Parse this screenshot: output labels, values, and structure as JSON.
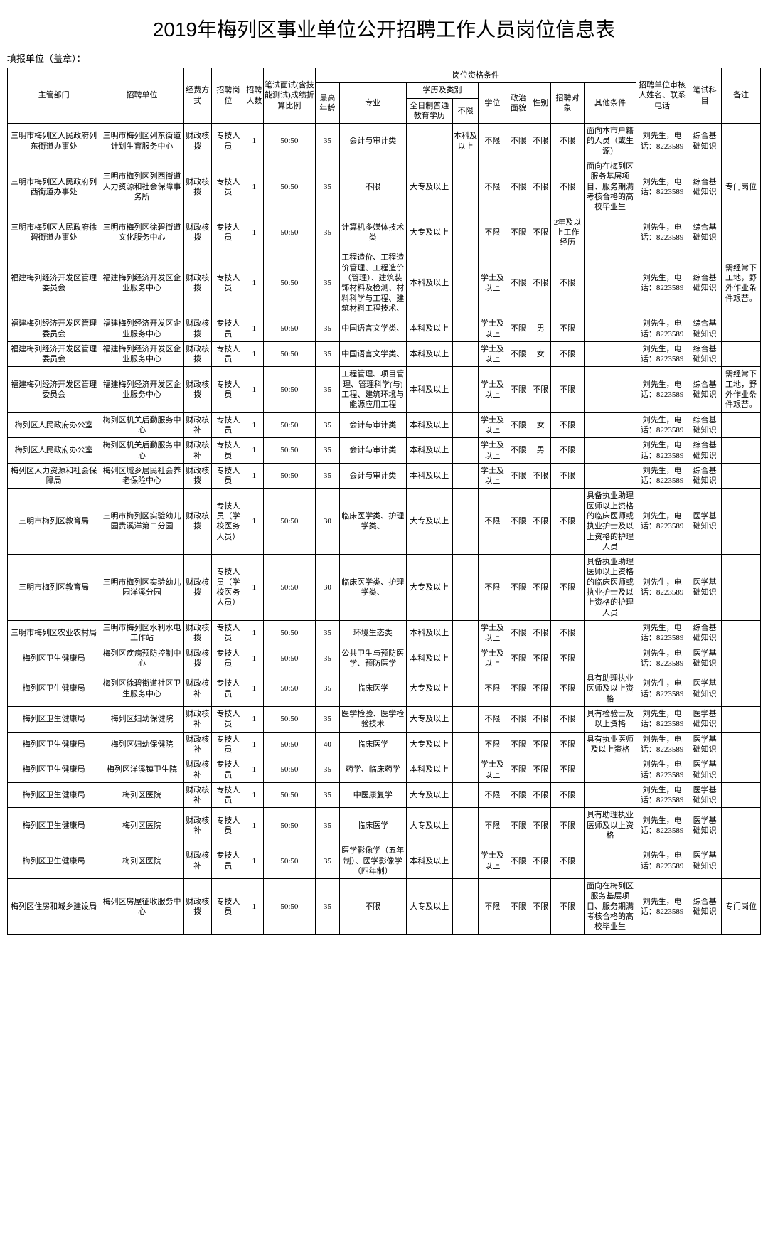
{
  "title": "2019年梅列区事业单位公开招聘工作人员岗位信息表",
  "subtitle": "填报单位（盖章）：",
  "headers": {
    "dept": "主管部门",
    "unit": "招聘单位",
    "fund": "经费方式",
    "post": "招聘岗位",
    "num": "招聘人数",
    "ratio": "笔试面试(含技能测试)成绩折算比例",
    "qualGroup": "岗位资格条件",
    "age": "最高年龄",
    "major": "专业",
    "eduGroup": "学历及类别",
    "edu": "全日制普通教育学历",
    "nolim": "不限",
    "degree": "学位",
    "pol": "政治面貌",
    "sex": "性别",
    "target": "招聘对象",
    "other": "其他条件",
    "contact": "招聘单位审核人姓名、联系电话",
    "exam": "笔试科目",
    "note": "备注"
  },
  "rows": [
    {
      "dept": "三明市梅列区人民政府列东街道办事处",
      "unit": "三明市梅列区列东街道计划生育服务中心",
      "fund": "财政核拨",
      "post": "专技人员",
      "num": "1",
      "ratio": "50:50",
      "age": "35",
      "major": "会计与审计类",
      "edu": "",
      "nolim": "本科及以上",
      "degree": "不限",
      "pol": "不限",
      "sex": "不限",
      "target": "不限",
      "other": "面向本市户籍的人员（或生源）",
      "contact": "刘先生，电话：8223589",
      "exam": "综合基础知识",
      "note": ""
    },
    {
      "dept": "三明市梅列区人民政府列西街道办事处",
      "unit": "三明市梅列区列西街道人力资源和社会保障事务所",
      "fund": "财政核拨",
      "post": "专技人员",
      "num": "1",
      "ratio": "50:50",
      "age": "35",
      "major": "不限",
      "edu": "大专及以上",
      "nolim": "",
      "degree": "不限",
      "pol": "不限",
      "sex": "不限",
      "target": "不限",
      "other": "面向在梅列区服务基层项目、服务期满考核合格的高校毕业生",
      "contact": "刘先生，电话：8223589",
      "exam": "综合基础知识",
      "note": "专门岗位"
    },
    {
      "dept": "三明市梅列区人民政府徐碧街道办事处",
      "unit": "三明市梅列区徐碧街道文化服务中心",
      "fund": "财政核拨",
      "post": "专技人员",
      "num": "1",
      "ratio": "50:50",
      "age": "35",
      "major": "计算机多媒体技术类",
      "edu": "大专及以上",
      "nolim": "",
      "degree": "不限",
      "pol": "不限",
      "sex": "不限",
      "target": "2年及以上工作经历",
      "other": "",
      "contact": "刘先生，电话：8223589",
      "exam": "综合基础知识",
      "note": ""
    },
    {
      "dept": "福建梅列经济开发区管理委员会",
      "unit": "福建梅列经济开发区企业服务中心",
      "fund": "财政核拨",
      "post": "专技人员",
      "num": "1",
      "ratio": "50:50",
      "age": "35",
      "major": "工程造价、工程造价管理、工程造价（管理）、建筑装饰材料及检测、材料科学与工程、建筑材料工程技术、",
      "edu": "本科及以上",
      "nolim": "",
      "degree": "学士及以上",
      "pol": "不限",
      "sex": "不限",
      "target": "不限",
      "other": "",
      "contact": "刘先生，电话：8223589",
      "exam": "综合基础知识",
      "note": "需经常下工地，野外作业条件艰苦。"
    },
    {
      "dept": "福建梅列经济开发区管理委员会",
      "unit": "福建梅列经济开发区企业服务中心",
      "fund": "财政核拨",
      "post": "专技人员",
      "num": "1",
      "ratio": "50:50",
      "age": "35",
      "major": "中国语言文学类、",
      "edu": "本科及以上",
      "nolim": "",
      "degree": "学士及以上",
      "pol": "不限",
      "sex": "男",
      "target": "不限",
      "other": "",
      "contact": "刘先生，电话：8223589",
      "exam": "综合基础知识",
      "note": ""
    },
    {
      "dept": "福建梅列经济开发区管理委员会",
      "unit": "福建梅列经济开发区企业服务中心",
      "fund": "财政核拨",
      "post": "专技人员",
      "num": "1",
      "ratio": "50:50",
      "age": "35",
      "major": "中国语言文学类、",
      "edu": "本科及以上",
      "nolim": "",
      "degree": "学士及以上",
      "pol": "不限",
      "sex": "女",
      "target": "不限",
      "other": "",
      "contact": "刘先生，电话：8223589",
      "exam": "综合基础知识",
      "note": ""
    },
    {
      "dept": "福建梅列经济开发区管理委员会",
      "unit": "福建梅列经济开发区企业服务中心",
      "fund": "财政核拨",
      "post": "专技人员",
      "num": "1",
      "ratio": "50:50",
      "age": "35",
      "major": "工程管理、项目管理、管理科学(与)工程、建筑环境与能源应用工程",
      "edu": "本科及以上",
      "nolim": "",
      "degree": "学士及以上",
      "pol": "不限",
      "sex": "不限",
      "target": "不限",
      "other": "",
      "contact": "刘先生，电话：8223589",
      "exam": "综合基础知识",
      "note": "需经常下工地，野外作业条件艰苦。"
    },
    {
      "dept": "梅列区人民政府办公室",
      "unit": "梅列区机关后勤服务中心",
      "fund": "财政核补",
      "post": "专技人员",
      "num": "1",
      "ratio": "50:50",
      "age": "35",
      "major": "会计与审计类",
      "edu": "本科及以上",
      "nolim": "",
      "degree": "学士及以上",
      "pol": "不限",
      "sex": "女",
      "target": "不限",
      "other": "",
      "contact": "刘先生，电话：8223589",
      "exam": "综合基础知识",
      "note": ""
    },
    {
      "dept": "梅列区人民政府办公室",
      "unit": "梅列区机关后勤服务中心",
      "fund": "财政核补",
      "post": "专技人员",
      "num": "1",
      "ratio": "50:50",
      "age": "35",
      "major": "会计与审计类",
      "edu": "本科及以上",
      "nolim": "",
      "degree": "学士及以上",
      "pol": "不限",
      "sex": "男",
      "target": "不限",
      "other": "",
      "contact": "刘先生，电话：8223589",
      "exam": "综合基础知识",
      "note": ""
    },
    {
      "dept": "梅列区人力资源和社会保障局",
      "unit": "梅列区城乡居民社会养老保险中心",
      "fund": "财政核拨",
      "post": "专技人员",
      "num": "1",
      "ratio": "50:50",
      "age": "35",
      "major": "会计与审计类",
      "edu": "本科及以上",
      "nolim": "",
      "degree": "学士及以上",
      "pol": "不限",
      "sex": "不限",
      "target": "不限",
      "other": "",
      "contact": "刘先生，电话：8223589",
      "exam": "综合基础知识",
      "note": ""
    },
    {
      "dept": "三明市梅列区教育局",
      "unit": "三明市梅列区实验幼儿园贵溪洋第二分园",
      "fund": "财政核拨",
      "post": "专技人员（学校医务人员）",
      "num": "1",
      "ratio": "50:50",
      "age": "30",
      "major": "临床医学类、护理学类、",
      "edu": "大专及以上",
      "nolim": "",
      "degree": "不限",
      "pol": "不限",
      "sex": "不限",
      "target": "不限",
      "other": "具备执业助理医师以上资格的临床医师或执业护士及以上资格的护理人员",
      "contact": "刘先生，电话：8223589",
      "exam": "医学基础知识",
      "note": ""
    },
    {
      "dept": "三明市梅列区教育局",
      "unit": "三明市梅列区实验幼儿园洋溪分园",
      "fund": "财政核拨",
      "post": "专技人员（学校医务人员）",
      "num": "1",
      "ratio": "50:50",
      "age": "30",
      "major": "临床医学类、护理学类、",
      "edu": "大专及以上",
      "nolim": "",
      "degree": "不限",
      "pol": "不限",
      "sex": "不限",
      "target": "不限",
      "other": "具备执业助理医师以上资格的临床医师或执业护士及以上资格的护理人员",
      "contact": "刘先生，电话：8223589",
      "exam": "医学基础知识",
      "note": ""
    },
    {
      "dept": "三明市梅列区农业农村局",
      "unit": "三明市梅列区水利水电工作站",
      "fund": "财政核拨",
      "post": "专技人员",
      "num": "1",
      "ratio": "50:50",
      "age": "35",
      "major": "环境生态类",
      "edu": "本科及以上",
      "nolim": "",
      "degree": "学士及以上",
      "pol": "不限",
      "sex": "不限",
      "target": "不限",
      "other": "",
      "contact": "刘先生，电话：8223589",
      "exam": "综合基础知识",
      "note": ""
    },
    {
      "dept": "梅列区卫生健康局",
      "unit": "梅列区疾病预防控制中心",
      "fund": "财政核拨",
      "post": "专技人员",
      "num": "1",
      "ratio": "50:50",
      "age": "35",
      "major": "公共卫生与预防医学、预防医学",
      "edu": "本科及以上",
      "nolim": "",
      "degree": "学士及以上",
      "pol": "不限",
      "sex": "不限",
      "target": "不限",
      "other": "",
      "contact": "刘先生，电话：8223589",
      "exam": "医学基础知识",
      "note": ""
    },
    {
      "dept": "梅列区卫生健康局",
      "unit": "梅列区徐碧街道社区卫生服务中心",
      "fund": "财政核补",
      "post": "专技人员",
      "num": "1",
      "ratio": "50:50",
      "age": "35",
      "major": "临床医学",
      "edu": "大专及以上",
      "nolim": "",
      "degree": "不限",
      "pol": "不限",
      "sex": "不限",
      "target": "不限",
      "other": "具有助理执业医师及以上资格",
      "contact": "刘先生，电话：8223589",
      "exam": "医学基础知识",
      "note": ""
    },
    {
      "dept": "梅列区卫生健康局",
      "unit": "梅列区妇幼保健院",
      "fund": "财政核补",
      "post": "专技人员",
      "num": "1",
      "ratio": "50:50",
      "age": "35",
      "major": "医学检验、医学检验技术",
      "edu": "大专及以上",
      "nolim": "",
      "degree": "不限",
      "pol": "不限",
      "sex": "不限",
      "target": "不限",
      "other": "具有检验士及以上资格",
      "contact": "刘先生，电话：8223589",
      "exam": "医学基础知识",
      "note": ""
    },
    {
      "dept": "梅列区卫生健康局",
      "unit": "梅列区妇幼保健院",
      "fund": "财政核补",
      "post": "专技人员",
      "num": "1",
      "ratio": "50:50",
      "age": "40",
      "major": "临床医学",
      "edu": "大专及以上",
      "nolim": "",
      "degree": "不限",
      "pol": "不限",
      "sex": "不限",
      "target": "不限",
      "other": "具有执业医师及以上资格",
      "contact": "刘先生，电话：8223589",
      "exam": "医学基础知识",
      "note": ""
    },
    {
      "dept": "梅列区卫生健康局",
      "unit": "梅列区洋溪镇卫生院",
      "fund": "财政核补",
      "post": "专技人员",
      "num": "1",
      "ratio": "50:50",
      "age": "35",
      "major": "药学、临床药学",
      "edu": "本科及以上",
      "nolim": "",
      "degree": "学士及以上",
      "pol": "不限",
      "sex": "不限",
      "target": "不限",
      "other": "",
      "contact": "刘先生，电话：8223589",
      "exam": "医学基础知识",
      "note": ""
    },
    {
      "dept": "梅列区卫生健康局",
      "unit": "梅列区医院",
      "fund": "财政核补",
      "post": "专技人员",
      "num": "1",
      "ratio": "50:50",
      "age": "35",
      "major": "中医康复学",
      "edu": "大专及以上",
      "nolim": "",
      "degree": "不限",
      "pol": "不限",
      "sex": "不限",
      "target": "不限",
      "other": "",
      "contact": "刘先生，电话：8223589",
      "exam": "医学基础知识",
      "note": ""
    },
    {
      "dept": "梅列区卫生健康局",
      "unit": "梅列区医院",
      "fund": "财政核补",
      "post": "专技人员",
      "num": "1",
      "ratio": "50:50",
      "age": "35",
      "major": "临床医学",
      "edu": "大专及以上",
      "nolim": "",
      "degree": "不限",
      "pol": "不限",
      "sex": "不限",
      "target": "不限",
      "other": "具有助理执业医师及以上资格",
      "contact": "刘先生，电话：8223589",
      "exam": "医学基础知识",
      "note": ""
    },
    {
      "dept": "梅列区卫生健康局",
      "unit": "梅列区医院",
      "fund": "财政核补",
      "post": "专技人员",
      "num": "1",
      "ratio": "50:50",
      "age": "35",
      "major": "医学影像学（五年制）、医学影像学（四年制）",
      "edu": "本科及以上",
      "nolim": "",
      "degree": "学士及以上",
      "pol": "不限",
      "sex": "不限",
      "target": "不限",
      "other": "",
      "contact": "刘先生，电话：8223589",
      "exam": "医学基础知识",
      "note": ""
    },
    {
      "dept": "梅列区住房和城乡建设局",
      "unit": "梅列区房屋征收服务中心",
      "fund": "财政核拨",
      "post": "专技人员",
      "num": "1",
      "ratio": "50:50",
      "age": "35",
      "major": "不限",
      "edu": "大专及以上",
      "nolim": "",
      "degree": "不限",
      "pol": "不限",
      "sex": "不限",
      "target": "不限",
      "other": "面向在梅列区服务基层项目、服务期满考核合格的高校毕业生",
      "contact": "刘先生，电话：8223589",
      "exam": "综合基础知识",
      "note": "专门岗位"
    }
  ]
}
